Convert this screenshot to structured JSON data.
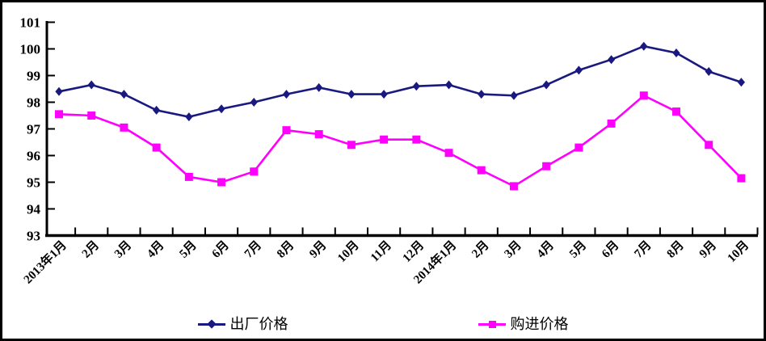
{
  "chart_data": {
    "type": "line",
    "title": "",
    "xlabel": "",
    "ylabel": "",
    "categories": [
      "2013年1月",
      "2月",
      "3月",
      "4月",
      "5月",
      "6月",
      "7月",
      "8月",
      "9月",
      "10月",
      "11月",
      "12月",
      "2014年1月",
      "2月",
      "3月",
      "4月",
      "5月",
      "6月",
      "7月",
      "8月",
      "9月",
      "10月"
    ],
    "series": [
      {
        "name": "出厂价格",
        "marker": "diamond",
        "color": "#191980",
        "values": [
          98.4,
          98.65,
          98.3,
          97.7,
          97.45,
          97.75,
          98.0,
          98.3,
          98.55,
          98.3,
          98.3,
          98.6,
          98.65,
          98.3,
          98.25,
          98.65,
          99.2,
          99.6,
          100.1,
          99.85,
          99.15,
          98.75
        ]
      },
      {
        "name": "购进价格",
        "marker": "square",
        "color": "#ff00ff",
        "values": [
          97.55,
          97.5,
          97.05,
          96.3,
          95.2,
          95.0,
          95.4,
          96.95,
          96.8,
          96.4,
          96.6,
          96.6,
          96.1,
          95.45,
          94.85,
          95.6,
          96.3,
          97.2,
          98.25,
          97.65,
          96.4,
          95.15
        ]
      }
    ],
    "ylim": [
      93,
      101
    ],
    "y_step": 1,
    "y_tick_labels": [
      "101",
      "100",
      "99",
      "98",
      "97",
      "96",
      "95",
      "94",
      "93"
    ],
    "grid": false,
    "legend_position": "bottom",
    "axis_color": "#000000",
    "background_color": "#ffffff"
  }
}
